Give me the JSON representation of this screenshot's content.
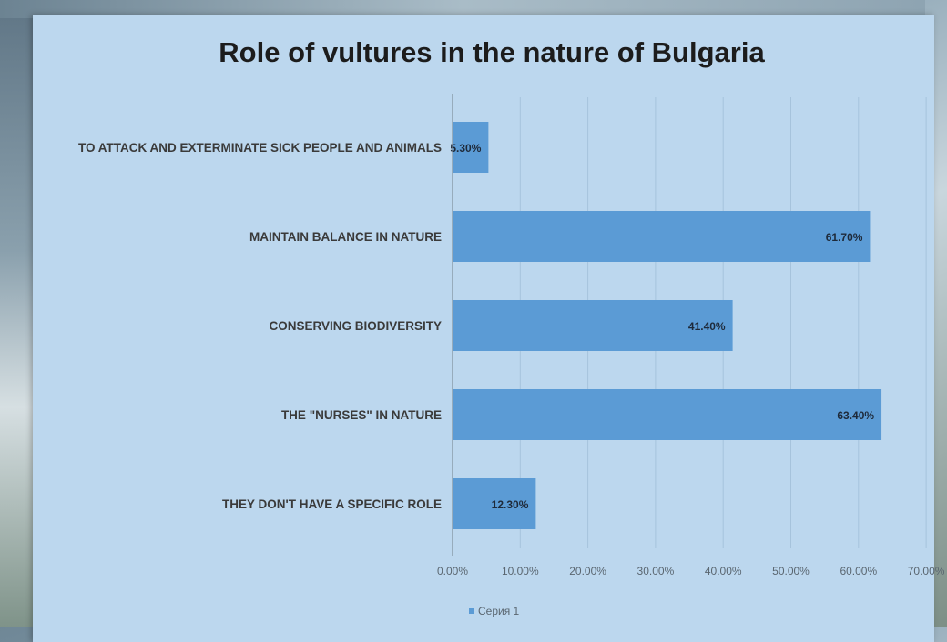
{
  "chart_data": {
    "type": "bar",
    "orientation": "horizontal",
    "title": "Role of vultures in the nature of Bulgaria",
    "categories": [
      "TO ATTACK AND EXTERMINATE SICK PEOPLE AND ANIMALS",
      "MAINTAIN BALANCE IN NATURE",
      "CONSERVING BIODIVERSITY",
      "THE \"NURSES\" IN NATURE",
      "THEY DON'T HAVE A SPECIFIC ROLE"
    ],
    "series": [
      {
        "name": "Серия 1",
        "values": [
          5.3,
          61.7,
          41.4,
          63.4,
          12.3
        ],
        "labels": [
          "5.30%",
          "61.70%",
          "41.40%",
          "63.40%",
          "12.30%"
        ]
      }
    ],
    "x_ticks": [
      "0.00%",
      "10.00%",
      "20.00%",
      "30.00%",
      "40.00%",
      "50.00%",
      "60.00%",
      "70.00%"
    ],
    "xlim": [
      0,
      70
    ],
    "grid": true,
    "legend": "bottom",
    "colors": {
      "bar": "#5b9bd5",
      "grid": "#a6c3dc",
      "axis": "#7f8f9c",
      "text": "#3a3a3a"
    }
  }
}
